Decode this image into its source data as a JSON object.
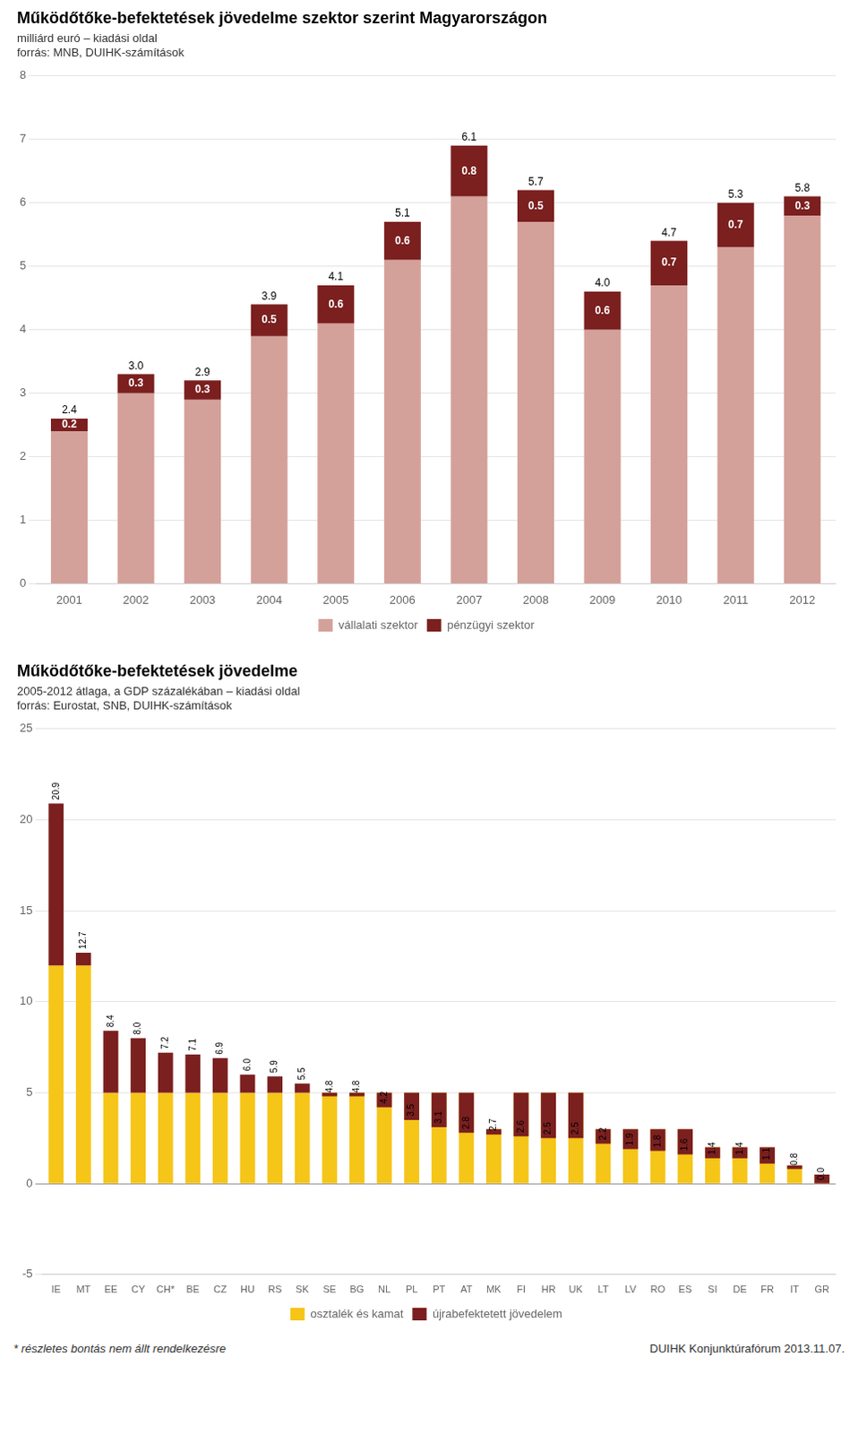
{
  "chart_data": [
    {
      "type": "bar",
      "title": "Működőtőke-befektetések jövedelme szektor szerint Magyarországon",
      "subtitle": [
        "milliárd euró – kiadási oldal",
        "forrás: MNB, DUIHK-számítások"
      ],
      "categories": [
        "2001",
        "2002",
        "2003",
        "2004",
        "2005",
        "2006",
        "2007",
        "2008",
        "2009",
        "2010",
        "2011",
        "2012"
      ],
      "series": [
        {
          "name": "vállalati szektor",
          "color": "#d4a09a",
          "values": [
            2.4,
            3.0,
            2.9,
            3.9,
            4.1,
            5.1,
            6.1,
            5.7,
            4.0,
            4.7,
            5.3,
            5.8
          ],
          "value_labels": [
            "2.4",
            "3.0",
            "2.9",
            "3.9",
            "4.1",
            "5.1",
            "6.1",
            "5.7",
            "4.0",
            "4.7",
            "5.3",
            "5.8"
          ]
        },
        {
          "name": "pénzügyi szektor",
          "color": "#7b1f1f",
          "values": [
            0.2,
            0.3,
            0.3,
            0.5,
            0.6,
            0.6,
            0.8,
            0.5,
            0.6,
            0.7,
            0.7,
            0.3
          ]
        }
      ],
      "stacked": true,
      "data_labels": true,
      "ylim": [
        0,
        8
      ],
      "yticks": [
        0,
        1,
        2,
        3,
        4,
        5,
        6,
        7,
        8
      ],
      "grid": true,
      "legend": "bottom"
    },
    {
      "type": "bar",
      "title": "Működőtőke-befektetések jövedelme",
      "subtitle": [
        "2005-2012 átlaga, a GDP százalékában – kiadási oldal",
        "forrás: Eurostat, SNB, DUIHK-számítások"
      ],
      "categories": [
        "IE",
        "MT",
        "EE",
        "CY",
        "CH*",
        "BE",
        "CZ",
        "HU",
        "RS",
        "SK",
        "SE",
        "BG",
        "NL",
        "PL",
        "PT",
        "AT",
        "MK",
        "FI",
        "HR",
        "UK",
        "LT",
        "LV",
        "RO",
        "ES",
        "SI",
        "DE",
        "FR",
        "IT",
        "GR"
      ],
      "series": [
        {
          "name": "osztalék és kamat",
          "color": "#f5c518",
          "values": [
            12.0,
            12.0,
            5.0,
            5.0,
            5.0,
            5.0,
            5.0,
            5.0,
            5.0,
            5.0,
            5.0,
            5.0,
            5.0,
            5.0,
            5.0,
            5.0,
            3.0,
            5.0,
            5.0,
            5.0,
            3.0,
            3.0,
            3.0,
            3.0,
            2.0,
            2.0,
            2.0,
            1.0,
            0.5
          ]
        },
        {
          "name": "újrabefektetett jövedelem",
          "color": "#7b1f1f",
          "values": [
            8.9,
            0.7,
            3.4,
            3.0,
            2.2,
            2.1,
            1.9,
            1.0,
            0.9,
            0.5,
            -0.2,
            -0.2,
            -0.8,
            -1.5,
            -1.9,
            -2.2,
            -0.3,
            -2.4,
            -2.5,
            -2.5,
            -0.8,
            -1.1,
            -1.2,
            -1.4,
            -0.6,
            -0.6,
            -0.9,
            -0.2,
            -0.5
          ]
        }
      ],
      "totals": [
        20.9,
        12.7,
        8.4,
        8.0,
        7.2,
        7.1,
        6.9,
        6.0,
        5.9,
        5.5,
        4.8,
        4.8,
        4.2,
        3.5,
        3.1,
        2.8,
        2.7,
        2.6,
        2.5,
        2.5,
        2.2,
        1.9,
        1.8,
        1.6,
        1.4,
        1.4,
        1.1,
        0.8,
        0.0
      ],
      "total_labels": [
        "20.9",
        "12.7",
        "8.4",
        "8.0",
        "7.2",
        "7.1",
        "6.9",
        "6.0",
        "5.9",
        "5.5",
        "4.8",
        "4.8",
        "4.2",
        "3.5",
        "3.1",
        "2.8",
        "2.7",
        "2.6",
        "2.5",
        "2.5",
        "2.2",
        "1.9",
        "1.8",
        "1.6",
        "1.4",
        "1.4",
        "1.1",
        "0.8",
        "0.0"
      ],
      "stacked": true,
      "data_labels": true,
      "ylim": [
        -5,
        25
      ],
      "yticks": [
        -5,
        0,
        5,
        10,
        15,
        20,
        25
      ],
      "grid": true,
      "legend": "bottom",
      "annotations": [
        "* részletes bontás nem állt rendelkezésre",
        "DUIHK Konjunktúrafórum 2013.11.07."
      ]
    }
  ]
}
